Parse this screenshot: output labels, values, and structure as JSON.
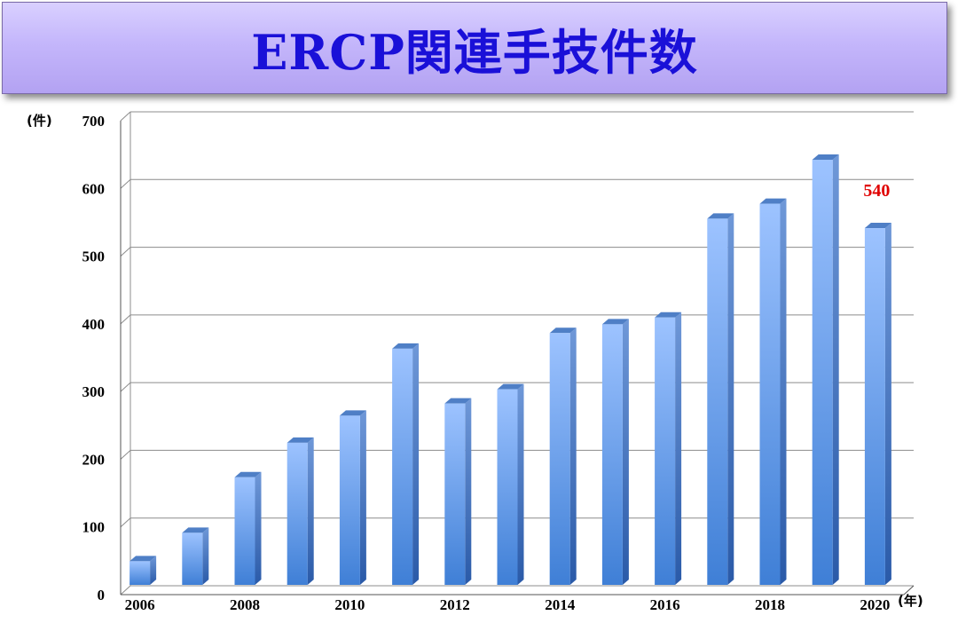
{
  "header": {
    "title": "ERCP関連手技件数"
  },
  "chart_data": {
    "type": "bar",
    "title": "ERCP関連手技件数",
    "y_unit_label": "(件)",
    "x_unit_label": "(年)",
    "categories": [
      "2006",
      "2007",
      "2008",
      "2009",
      "2010",
      "2011",
      "2012",
      "2013",
      "2014",
      "2015",
      "2016",
      "2017",
      "2018",
      "2019",
      "2020"
    ],
    "x_tick_labels": [
      "2006",
      "",
      "2008",
      "",
      "2010",
      "",
      "2012",
      "",
      "2014",
      "",
      "2016",
      "",
      "2018",
      "",
      "2020"
    ],
    "values": [
      48,
      90,
      172,
      223,
      263,
      362,
      281,
      302,
      385,
      398,
      408,
      554,
      576,
      641,
      540
    ],
    "ylim": [
      0,
      700
    ],
    "yticks": [
      0,
      100,
      200,
      300,
      400,
      500,
      600,
      700
    ],
    "data_labels": [
      {
        "category": "2020",
        "text": "540"
      }
    ],
    "grid": true,
    "bar_color": "#4a86d8",
    "label_color": "#e00000"
  }
}
